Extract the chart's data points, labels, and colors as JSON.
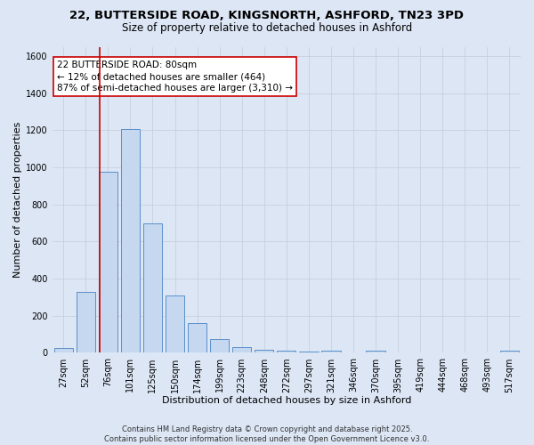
{
  "title_line1": "22, BUTTERSIDE ROAD, KINGSNORTH, ASHFORD, TN23 3PD",
  "title_line2": "Size of property relative to detached houses in Ashford",
  "xlabel": "Distribution of detached houses by size in Ashford",
  "ylabel": "Number of detached properties",
  "categories": [
    "27sqm",
    "52sqm",
    "76sqm",
    "101sqm",
    "125sqm",
    "150sqm",
    "174sqm",
    "199sqm",
    "223sqm",
    "248sqm",
    "272sqm",
    "297sqm",
    "321sqm",
    "346sqm",
    "370sqm",
    "395sqm",
    "419sqm",
    "444sqm",
    "468sqm",
    "493sqm",
    "517sqm"
  ],
  "values": [
    25,
    330,
    975,
    1205,
    700,
    310,
    160,
    75,
    30,
    15,
    10,
    5,
    10,
    0,
    10,
    0,
    0,
    0,
    0,
    0,
    10
  ],
  "bar_color": "#c5d8f0",
  "bar_edge_color": "#5b8fc9",
  "vline_color": "#cc0000",
  "vline_x": 1.6,
  "annotation_text": "22 BUTTERSIDE ROAD: 80sqm\n← 12% of detached houses are smaller (464)\n87% of semi-detached houses are larger (3,310) →",
  "annotation_box_facecolor": "#ffffff",
  "annotation_box_edgecolor": "#cc0000",
  "ylim": [
    0,
    1650
  ],
  "yticks": [
    0,
    200,
    400,
    600,
    800,
    1000,
    1200,
    1400,
    1600
  ],
  "grid_color": "#c8d0dc",
  "background_color": "#dce6f5",
  "footer_line1": "Contains HM Land Registry data © Crown copyright and database right 2025.",
  "footer_line2": "Contains public sector information licensed under the Open Government Licence v3.0.",
  "title_fontsize": 9.5,
  "subtitle_fontsize": 8.5,
  "axis_label_fontsize": 8,
  "tick_fontsize": 7,
  "annotation_fontsize": 7.5,
  "footer_fontsize": 6
}
